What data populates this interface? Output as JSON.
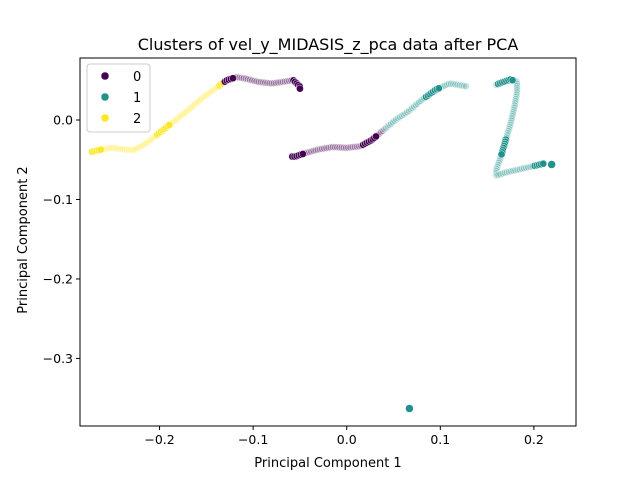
{
  "chart_data": {
    "type": "scatter",
    "title": "Clusters of vel_y_MIDASIS_z_pca data after PCA",
    "xlabel": "Principal Component 1",
    "ylabel": "Principal Component 2",
    "xlim": [
      -0.285,
      0.245
    ],
    "ylim": [
      -0.385,
      0.078
    ],
    "xticks": [
      -0.2,
      -0.1,
      0.0,
      0.1,
      0.2
    ],
    "xtick_labels": [
      "−0.2",
      "−0.1",
      "0.0",
      "0.1",
      "0.2"
    ],
    "yticks": [
      0.0,
      -0.1,
      -0.2,
      -0.3
    ],
    "ytick_labels": [
      "0.0",
      "−0.1",
      "−0.2",
      "−0.3"
    ],
    "grid": false,
    "legend": {
      "position": "top-left",
      "entries": [
        {
          "label": "0",
          "color": "#440154"
        },
        {
          "label": "1",
          "color": "#21918c"
        },
        {
          "label": "2",
          "color": "#fde725"
        }
      ]
    },
    "curve_path": [
      [
        -0.272,
        -0.04
      ],
      [
        -0.262,
        -0.037
      ],
      [
        -0.25,
        -0.035
      ],
      [
        -0.238,
        -0.037
      ],
      [
        -0.228,
        -0.038
      ],
      [
        -0.215,
        -0.03
      ],
      [
        -0.2,
        -0.016
      ],
      [
        -0.185,
        -0.002
      ],
      [
        -0.17,
        0.012
      ],
      [
        -0.155,
        0.027
      ],
      [
        -0.14,
        0.04
      ],
      [
        -0.128,
        0.05
      ],
      [
        -0.118,
        0.054
      ],
      [
        -0.108,
        0.052
      ],
      [
        -0.095,
        0.048
      ],
      [
        -0.08,
        0.046
      ],
      [
        -0.068,
        0.048
      ],
      [
        -0.057,
        0.05
      ],
      [
        -0.05,
        0.042
      ],
      [
        -0.05,
        0.025
      ],
      [
        -0.053,
        0.005
      ],
      [
        -0.057,
        -0.015
      ],
      [
        -0.061,
        -0.035
      ],
      [
        -0.062,
        -0.046
      ],
      [
        -0.055,
        -0.046
      ],
      [
        -0.045,
        -0.042
      ],
      [
        -0.03,
        -0.037
      ],
      [
        -0.015,
        -0.034
      ],
      [
        0.0,
        -0.035
      ],
      [
        0.015,
        -0.033
      ],
      [
        0.027,
        -0.025
      ],
      [
        0.04,
        -0.012
      ],
      [
        0.052,
        0.0
      ],
      [
        0.065,
        0.01
      ],
      [
        0.08,
        0.025
      ],
      [
        0.095,
        0.038
      ],
      [
        0.11,
        0.046
      ],
      [
        0.125,
        0.043
      ],
      [
        0.14,
        0.04
      ],
      [
        0.152,
        0.04
      ],
      [
        0.163,
        0.046
      ],
      [
        0.175,
        0.051
      ],
      [
        0.182,
        0.048
      ],
      [
        0.182,
        0.035
      ],
      [
        0.179,
        0.015
      ],
      [
        0.175,
        -0.005
      ],
      [
        0.17,
        -0.025
      ],
      [
        0.165,
        -0.045
      ],
      [
        0.16,
        -0.062
      ],
      [
        0.16,
        -0.07
      ],
      [
        0.17,
        -0.066
      ],
      [
        0.185,
        -0.062
      ],
      [
        0.2,
        -0.058
      ],
      [
        0.21,
        -0.055
      ]
    ],
    "clusters": [
      {
        "label": "0",
        "color": "#440154",
        "t_ranges": [
          [
            0.22,
            0.34
          ],
          [
            0.44,
            0.58
          ]
        ]
      },
      {
        "label": "1",
        "color": "#21918c",
        "t_ranges": [
          [
            0.58,
            0.72
          ],
          [
            0.76,
            1.0
          ]
        ]
      },
      {
        "label": "2",
        "color": "#fde725",
        "t_ranges": [
          [
            0.0,
            0.22
          ]
        ]
      }
    ],
    "outliers": [
      {
        "cluster": "1",
        "x": 0.219,
        "y": -0.056
      },
      {
        "cluster": "1",
        "x": 0.067,
        "y": -0.363
      }
    ]
  }
}
